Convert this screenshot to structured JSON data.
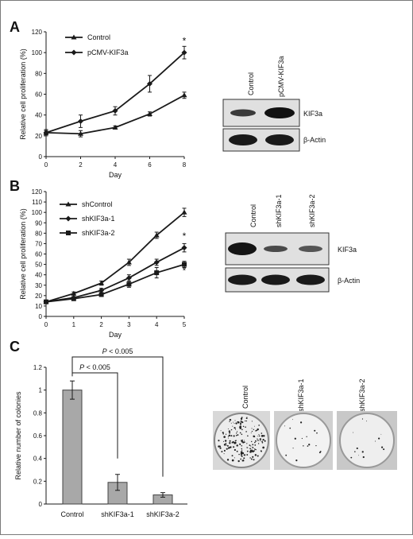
{
  "panels": {
    "A": {
      "label": "A",
      "chart_data": {
        "type": "line",
        "xlabel": "Day",
        "ylabel": "Relative cell proliferation (%)",
        "x": [
          0,
          2,
          4,
          6,
          8
        ],
        "xlim": [
          0,
          8
        ],
        "ylim": [
          0,
          120
        ],
        "xticks": [
          "0",
          "2",
          "4",
          "6",
          "8"
        ],
        "yticks": [
          "0",
          "20",
          "40",
          "60",
          "80",
          "100",
          "120"
        ],
        "series": [
          {
            "name": "Control",
            "marker": "triangle",
            "values": [
              23,
              22,
              28,
              41,
              59
            ],
            "errors": [
              2,
              3,
              1.5,
              2,
              3
            ]
          },
          {
            "name": "pCMV-KIF3a",
            "marker": "diamond",
            "values": [
              23,
              34,
              44,
              70,
              100
            ],
            "errors": [
              3,
              6,
              4,
              8,
              6
            ]
          }
        ],
        "annotations": [
          "*"
        ],
        "legend": "top-left"
      },
      "blot": {
        "lanes": [
          "Control",
          "pCMV-KIF3a"
        ],
        "rows": [
          "KIF3a",
          "β-Actin"
        ]
      }
    },
    "B": {
      "label": "B",
      "chart_data": {
        "type": "line",
        "xlabel": "Day",
        "ylabel": "Relative cell proliferation (%)",
        "x": [
          0,
          1,
          2,
          3,
          4,
          5
        ],
        "xlim": [
          0,
          5
        ],
        "ylim": [
          0,
          120
        ],
        "xticks": [
          "0",
          "1",
          "2",
          "3",
          "4",
          "5"
        ],
        "yticks": [
          "0",
          "10",
          "20",
          "30",
          "40",
          "50",
          "60",
          "70",
          "80",
          "90",
          "100",
          "110",
          "120"
        ],
        "series": [
          {
            "name": "shControl",
            "marker": "triangle",
            "values": [
              14,
              22,
              32,
              52,
              78,
              100
            ],
            "errors": [
              1,
              1.5,
              2,
              3,
              3,
              4
            ]
          },
          {
            "name": "shKIF3a-1",
            "marker": "diamond",
            "values": [
              14,
              18,
              25,
              37,
              52,
              66
            ],
            "errors": [
              1,
              1,
              2,
              3,
              3,
              4
            ]
          },
          {
            "name": "shKIF3a-2",
            "marker": "square",
            "values": [
              14,
              17,
              21,
              31,
              42,
              50
            ],
            "errors": [
              1,
              1,
              1.5,
              3,
              5,
              3
            ]
          }
        ],
        "annotations": [
          "*",
          "*"
        ],
        "legend": "top-left"
      },
      "blot": {
        "lanes": [
          "Control",
          "shKIF3a-1",
          "shKIF3a-2"
        ],
        "rows": [
          "KIF3a",
          "β-Actin"
        ]
      }
    },
    "C": {
      "label": "C",
      "chart_data": {
        "type": "bar",
        "categories": [
          "Control",
          "shKIF3a-1",
          "shKIF3a-2"
        ],
        "values": [
          1.0,
          0.19,
          0.08
        ],
        "errors": [
          0.08,
          0.07,
          0.02
        ],
        "ylabel": "Relative number of colonies",
        "xlabel": "",
        "ylim": [
          0,
          1.2
        ],
        "yticks": [
          "0",
          "0.2",
          "0.4",
          "0.6",
          "0.8",
          "1",
          "1.2"
        ],
        "annotations": [
          {
            "text": "P < 0.005",
            "italic_part": "P",
            "rest": " < 0.005",
            "from": "Control",
            "to": "shKIF3a-1"
          },
          {
            "text": "P < 0.005",
            "italic_part": "P",
            "rest": " < 0.005",
            "from": "Control",
            "to": "shKIF3a-2"
          }
        ]
      },
      "plates": [
        "Control",
        "shKIF3a-1",
        "shKIF3a-2"
      ]
    }
  },
  "colors": {
    "bar": "#a8a8a8",
    "line": "#1a1a1a",
    "blot_bg": "#e2e2e2",
    "frame": "#7a7a7a"
  }
}
